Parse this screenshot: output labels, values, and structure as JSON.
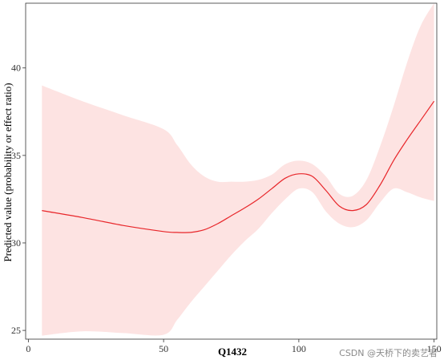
{
  "chart_data": {
    "type": "line",
    "xlabel": "Q1432",
    "ylabel": "Predicted value (probability or effect ratio)",
    "xlim": [
      -1,
      151
    ],
    "ylim": [
      24.5,
      43.7
    ],
    "x_ticks": [
      0,
      50,
      100,
      150
    ],
    "y_ticks": [
      25,
      30,
      35,
      40
    ],
    "grid": false,
    "colors": {
      "line": "#e8262a",
      "band": "#fde3e2",
      "frame": "#333333"
    },
    "series": [
      {
        "x": [
          5,
          20,
          35,
          50,
          55,
          60,
          65,
          70,
          75,
          80,
          85,
          90,
          95,
          100,
          105,
          110,
          115,
          120,
          125,
          130,
          135,
          140,
          145,
          150
        ],
        "y": [
          31.85,
          31.45,
          31.0,
          30.65,
          30.6,
          30.6,
          30.75,
          31.1,
          31.55,
          32.0,
          32.5,
          33.1,
          33.7,
          33.95,
          33.8,
          33.0,
          32.1,
          31.85,
          32.2,
          33.3,
          34.7,
          35.9,
          37.0,
          38.1
        ],
        "lower": [
          24.7,
          24.95,
          24.85,
          24.75,
          25.6,
          26.6,
          27.5,
          28.4,
          29.3,
          30.1,
          30.8,
          31.7,
          32.5,
          33.1,
          32.9,
          31.8,
          31.1,
          30.9,
          31.3,
          32.3,
          33.1,
          32.9,
          32.6,
          32.4
        ],
        "upper": [
          39.0,
          38.1,
          37.3,
          36.5,
          35.6,
          34.5,
          33.8,
          33.5,
          33.5,
          33.5,
          33.6,
          33.9,
          34.5,
          34.7,
          34.5,
          33.8,
          32.8,
          32.7,
          33.6,
          35.5,
          37.8,
          40.3,
          42.4,
          43.7
        ]
      }
    ]
  },
  "watermark": "CSDN @天桥下的卖艺者"
}
